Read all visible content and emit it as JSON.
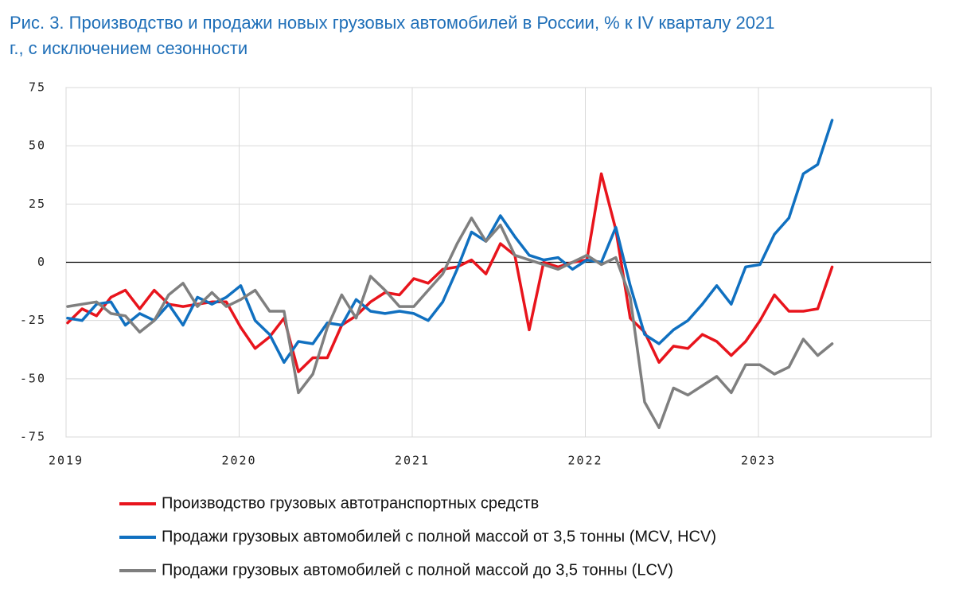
{
  "chart_data": {
    "type": "line",
    "title": "Рис. 3. Производство и продажи новых грузовых автомобилей в России, % к IV кварталу 2021",
    "subtitle": "г., с исключением сезонности",
    "categories": [
      "2019",
      null,
      null,
      null,
      null,
      null,
      null,
      null,
      null,
      null,
      null,
      null,
      "2020",
      null,
      null,
      null,
      null,
      null,
      null,
      null,
      null,
      null,
      null,
      null,
      "2021",
      null,
      null,
      null,
      null,
      null,
      null,
      null,
      null,
      null,
      null,
      null,
      "2022",
      null,
      null,
      null,
      null,
      null,
      null,
      null,
      null,
      null,
      null,
      null,
      "2023",
      null,
      null,
      null,
      null,
      null
    ],
    "series": [
      {
        "name": "Производство грузовых автотранспортных средств",
        "color": "#e8141c",
        "values": [
          -26,
          -20,
          -23,
          -15,
          -12,
          -20,
          -12,
          -18,
          -19,
          -18,
          -17,
          -17,
          -28,
          -37,
          -32,
          -24,
          -47,
          -41,
          -41,
          -27,
          -23,
          -17,
          -13,
          -14,
          -7,
          -9,
          -3,
          -2,
          1,
          -5,
          8,
          3,
          -29,
          0,
          -2,
          0,
          1,
          38,
          14,
          -24,
          -30,
          -43,
          -36,
          -37,
          -31,
          -34,
          -40,
          -34,
          -25,
          -14,
          -21,
          -21,
          -20,
          -2
        ]
      },
      {
        "name": "Продажи грузовых автомобилей с полной массой от 3,5 тонны (MCV, HCV)",
        "color": "#1070c0",
        "values": [
          -24,
          -25,
          -18,
          -17,
          -27,
          -22,
          -25,
          -18,
          -27,
          -15,
          -18,
          -15,
          -10,
          -25,
          -31,
          -43,
          -34,
          -35,
          -26,
          -27,
          -16,
          -21,
          -22,
          -21,
          -22,
          -25,
          -17,
          -3,
          13,
          9,
          20,
          11,
          3,
          1,
          2,
          -3,
          1,
          0,
          15,
          -10,
          -31,
          -35,
          -29,
          -25,
          -18,
          -10,
          -18,
          -2,
          -1,
          12,
          19,
          38,
          42,
          61
        ]
      },
      {
        "name": "Продажи грузовых автомобилей с полной массой до 3,5 тонны (LCV)",
        "color": "#7f7f7f",
        "values": [
          -19,
          -18,
          -17,
          -22,
          -23,
          -30,
          -25,
          -14,
          -9,
          -19,
          -13,
          -19,
          -16,
          -12,
          -21,
          -21,
          -56,
          -48,
          -28,
          -14,
          -24,
          -6,
          -12,
          -19,
          -19,
          -12,
          -5,
          8,
          19,
          9,
          16,
          3,
          1,
          -1,
          -3,
          0,
          3,
          -1,
          2,
          -15,
          -60,
          -71,
          -54,
          -57,
          -53,
          -49,
          -56,
          -44,
          -44,
          -48,
          -45,
          -33,
          -40,
          -35
        ]
      }
    ],
    "ylim": [
      -75,
      75
    ],
    "yticks": [
      75,
      50,
      25,
      0,
      -25,
      -50,
      -75
    ],
    "grid": true,
    "legend": "bottom"
  }
}
